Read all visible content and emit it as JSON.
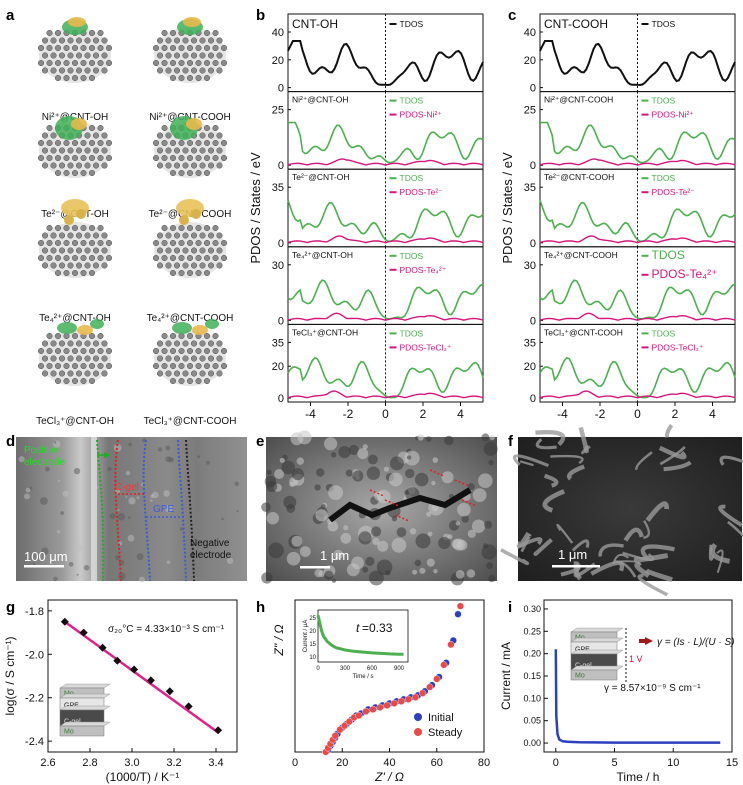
{
  "panel_letters": {
    "a": "a",
    "b": "b",
    "c": "c",
    "d": "d",
    "e": "e",
    "f": "f",
    "g": "g",
    "h": "h",
    "i": "i"
  },
  "colors": {
    "green": "#4cb050",
    "magenta": "#d4177f",
    "black": "#111111",
    "red_fit": "#e0218a",
    "blue": "#2c3fbf",
    "red_pt": "#e84a4a",
    "gel_red": "#e02020",
    "gpe_blue": "#3a5bd8"
  },
  "panel_a": {
    "labels": [
      "Ni²⁺@CNT-OH",
      "Ni²⁺@CNT-COOH",
      "Te²⁻@CNT-OH",
      "Te²⁻@CNT-COOH",
      "Te₄²⁺@CNT-OH",
      "Te₄²⁺@CNT-COOH",
      "TeCl₃⁺@CNT-OH",
      "TeCl₃⁺@CNT-COOH"
    ]
  },
  "panel_b": {
    "ylabel": "PDOS / States / eV",
    "xticks": [
      "-4",
      "-2",
      "0",
      "2",
      "4"
    ],
    "subplots": [
      {
        "name": "CNT-OH",
        "legend": [
          "TDOS"
        ],
        "yticks": [
          "40",
          "20",
          "0"
        ]
      },
      {
        "name": "Ni²⁺@CNT-OH",
        "legend": [
          "TDOS",
          "PDOS-Ni²⁺"
        ],
        "yticks": [
          "25",
          "0"
        ]
      },
      {
        "name": "Te²⁻@CNT-OH",
        "legend": [
          "TDOS",
          "PDOS-Te²⁻"
        ],
        "yticks": [
          "35",
          "0"
        ]
      },
      {
        "name": "Te₄²⁺@CNT-OH",
        "legend": [
          "TDOS",
          "PDOS-Te₄²⁺"
        ],
        "yticks": [
          "30",
          "0"
        ]
      },
      {
        "name": "TeCl₃⁺@CNT-OH",
        "legend": [
          "TDOS",
          "PDOS-TeCl₃⁺"
        ],
        "yticks": [
          "35",
          "20",
          "0"
        ]
      }
    ]
  },
  "panel_c": {
    "ylabel": "PDOS / States / eV",
    "xticks": [
      "-4",
      "-2",
      "0",
      "2",
      "4"
    ],
    "subplots": [
      {
        "name": "CNT-COOH",
        "legend": [
          "TDOS"
        ],
        "yticks": [
          "40",
          "20",
          "0"
        ]
      },
      {
        "name": "Ni²⁺@CNT-COOH",
        "legend": [
          "TDOS",
          "PDOS-Ni²⁺"
        ],
        "yticks": [
          "25",
          "0"
        ]
      },
      {
        "name": "Te²⁻@CNT-COOH",
        "legend": [
          "TDOS",
          "PDOS-Te²⁻"
        ],
        "yticks": [
          "35",
          "0"
        ]
      },
      {
        "name": "Te₄²⁺@CNT-COOH",
        "legend": [
          "TDOS",
          "PDOS-Te₄²⁺"
        ],
        "yticks": [
          "30",
          "0"
        ]
      },
      {
        "name": "TeCl₃⁺@CNT-COOH",
        "legend": [
          "TDOS",
          "PDOS-TeCl₃⁺"
        ],
        "yticks": [
          "35",
          "20",
          "0"
        ]
      }
    ]
  },
  "panel_d": {
    "positive": "Positive",
    "electrode1": "electrode",
    "cgel": "C-gel",
    "gpe": "GPE",
    "negative": "Negative",
    "electrode2": "electrode",
    "scale": "100 μm"
  },
  "panel_e": {
    "scale": "1 μm"
  },
  "panel_f": {
    "scale": "1 μm"
  },
  "chart_data": [
    {
      "type": "scatter",
      "title": "g",
      "xlabel": "(1000/T) / K⁻¹",
      "ylabel": "log(σ / S cm⁻¹)",
      "xlim": [
        2.6,
        3.5
      ],
      "ylim": [
        -2.45,
        -1.75
      ],
      "xticks": [
        "2.6",
        "2.8",
        "3.0",
        "3.2",
        "3.4"
      ],
      "yticks": [
        "-1.8",
        "-2.0",
        "-2.2",
        "-2.4"
      ],
      "x": [
        2.68,
        2.77,
        2.86,
        2.93,
        3.01,
        3.09,
        3.18,
        3.27,
        3.41
      ],
      "y": [
        -1.85,
        -1.9,
        -1.97,
        -2.03,
        -2.07,
        -2.12,
        -2.17,
        -2.24,
        -2.35
      ],
      "fit": {
        "x": [
          2.68,
          3.41
        ],
        "y": [
          -1.85,
          -2.36
        ]
      },
      "annotation": "σ₂₀°C = 4.33×10⁻³ S cm⁻¹",
      "inset_layers": [
        "Mo",
        "GPE",
        "C-gel",
        "Mo"
      ]
    },
    {
      "type": "scatter",
      "title": "h",
      "xlabel": "Z' / Ω",
      "ylabel": "Z'' / Ω",
      "xlim": [
        0,
        80
      ],
      "ylim": [
        0,
        75
      ],
      "xticks": [
        "0",
        "20",
        "40",
        "60",
        "80"
      ],
      "series": [
        {
          "name": "Initial",
          "x": [
            14,
            15,
            16,
            17,
            18,
            20,
            22,
            24,
            26,
            28,
            31,
            34,
            37,
            40,
            43,
            46,
            49,
            52,
            55,
            58,
            61,
            64,
            67,
            69
          ],
          "y": [
            1,
            3,
            5,
            7,
            9,
            12,
            14,
            16,
            18,
            19,
            21,
            22,
            23,
            24,
            25,
            26,
            27,
            28,
            30,
            33,
            37,
            44,
            55,
            68
          ]
        },
        {
          "name": "Steady",
          "x": [
            13,
            14,
            15,
            16,
            17,
            19,
            21,
            23,
            25,
            27,
            30,
            33,
            36,
            39,
            42,
            45,
            48,
            51,
            54,
            57,
            60,
            63,
            66,
            70
          ],
          "y": [
            0,
            2,
            4,
            6,
            8,
            11,
            13,
            15,
            17,
            18,
            20,
            21,
            22,
            23,
            24,
            25,
            26,
            27,
            29,
            32,
            36,
            43,
            53,
            72
          ]
        }
      ],
      "inset": {
        "xlabel": "Time / s",
        "ylabel": "Current / μA",
        "xticks": [
          "0",
          "300",
          "600",
          "900"
        ],
        "yticks": [
          "10",
          "15",
          "20",
          "25"
        ],
        "t_label": "t",
        "t_value": "=0.33",
        "x": [
          0,
          20,
          40,
          60,
          100,
          150,
          200,
          300,
          400,
          500,
          600,
          700,
          800,
          900,
          950
        ],
        "y": [
          26,
          23,
          20,
          18,
          16,
          14.5,
          13.5,
          12.6,
          12.1,
          11.8,
          11.5,
          11.3,
          11.1,
          11.0,
          11.0
        ]
      }
    },
    {
      "type": "line",
      "title": "i",
      "xlabel": "Time / h",
      "ylabel": "Current / mA",
      "xlim": [
        -1,
        15
      ],
      "ylim": [
        -0.02,
        0.32
      ],
      "xticks": [
        "0",
        "5",
        "10",
        "15"
      ],
      "yticks": [
        "0.00",
        "0.05",
        "0.10",
        "0.15",
        "0.20",
        "0.25",
        "0.30"
      ],
      "x": [
        0,
        0.05,
        0.15,
        0.3,
        0.6,
        1,
        2,
        5,
        10,
        14
      ],
      "y": [
        0.21,
        0.06,
        0.02,
        0.008,
        0.004,
        0.003,
        0.002,
        0.001,
        0.001,
        0.001
      ],
      "annotation": "γ = 8.57×10⁻⁹ S cm⁻¹",
      "voltage": "1 V",
      "formula": "γ = (Is · L)/(U · S)",
      "inset_layers": [
        "Mo",
        "GPE",
        "C-gel",
        "Mo"
      ]
    }
  ]
}
